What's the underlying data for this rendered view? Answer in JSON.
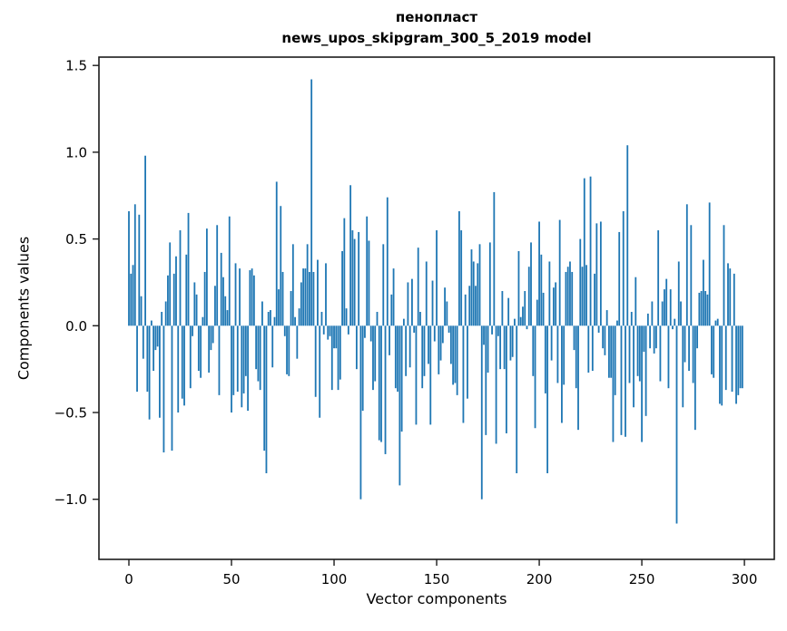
{
  "chart_data": {
    "type": "bar",
    "title": "пенопласт",
    "subtitle": "news_upos_skipgram_300_5_2019 model",
    "xlabel": "Vector components",
    "ylabel": "Components values",
    "x_ticks": [
      0,
      50,
      100,
      150,
      200,
      250,
      300
    ],
    "y_ticks": [
      1.5,
      1.0,
      0.5,
      0.0,
      -0.5,
      -1.0
    ],
    "xlim": [
      -14.6,
      314.6
    ],
    "ylim": [
      -1.35,
      1.55
    ],
    "grid": "off",
    "legend": "none",
    "bar_color": "#1f77b4",
    "axis_color": "#1c1c1c",
    "n_components": 300,
    "values": [
      0.66,
      0.3,
      0.35,
      0.7,
      -0.38,
      0.64,
      0.17,
      -0.19,
      0.98,
      -0.38,
      -0.54,
      0.03,
      -0.26,
      -0.14,
      -0.12,
      -0.53,
      0.08,
      -0.73,
      0.14,
      0.29,
      0.48,
      -0.72,
      0.3,
      0.4,
      -0.5,
      0.55,
      -0.42,
      -0.46,
      0.41,
      0.65,
      -0.36,
      -0.06,
      0.25,
      0.18,
      -0.26,
      -0.3,
      0.05,
      0.31,
      0.56,
      -0.27,
      -0.14,
      -0.1,
      0.23,
      0.58,
      -0.4,
      0.42,
      0.28,
      0.17,
      0.09,
      0.63,
      -0.5,
      -0.4,
      0.36,
      -0.38,
      0.33,
      -0.47,
      -0.39,
      -0.29,
      -0.49,
      0.32,
      0.33,
      0.29,
      -0.25,
      -0.32,
      -0.37,
      0.14,
      -0.72,
      -0.85,
      0.08,
      0.09,
      -0.24,
      0.05,
      0.83,
      0.21,
      0.69,
      0.31,
      -0.06,
      -0.28,
      -0.29,
      0.2,
      0.47,
      0.05,
      -0.19,
      0.1,
      0.25,
      0.33,
      0.33,
      0.47,
      0.31,
      1.42,
      0.31,
      -0.41,
      0.38,
      -0.53,
      0.08,
      -0.05,
      0.36,
      -0.08,
      -0.06,
      -0.37,
      -0.13,
      -0.13,
      -0.37,
      -0.31,
      0.43,
      0.62,
      0.1,
      -0.05,
      0.81,
      0.55,
      0.5,
      -0.25,
      0.54,
      -1.0,
      -0.49,
      -0.07,
      0.63,
      0.49,
      -0.09,
      -0.37,
      -0.32,
      0.08,
      -0.66,
      -0.67,
      0.47,
      -0.74,
      0.74,
      -0.17,
      0.18,
      0.33,
      -0.36,
      -0.38,
      -0.92,
      -0.61,
      0.04,
      -0.29,
      0.25,
      -0.24,
      0.27,
      -0.04,
      -0.57,
      0.45,
      0.08,
      -0.36,
      -0.29,
      0.37,
      -0.22,
      -0.57,
      0.26,
      -0.09,
      0.55,
      -0.28,
      -0.2,
      -0.1,
      0.22,
      0.14,
      -0.04,
      -0.22,
      -0.34,
      -0.33,
      -0.4,
      0.66,
      0.55,
      -0.56,
      0.18,
      -0.42,
      0.23,
      0.44,
      0.37,
      0.23,
      0.36,
      0.47,
      -1.0,
      -0.11,
      -0.63,
      -0.27,
      0.48,
      -0.05,
      0.77,
      -0.68,
      -0.06,
      -0.25,
      0.2,
      -0.25,
      -0.62,
      0.16,
      -0.2,
      -0.18,
      0.04,
      -0.85,
      0.43,
      0.05,
      0.11,
      0.2,
      -0.02,
      0.34,
      0.48,
      -0.29,
      -0.59,
      0.15,
      0.6,
      0.41,
      0.19,
      -0.39,
      -0.85,
      0.37,
      -0.2,
      0.22,
      0.25,
      -0.33,
      0.61,
      -0.56,
      -0.34,
      0.31,
      0.34,
      0.37,
      0.31,
      -0.14,
      -0.36,
      -0.6,
      0.5,
      0.34,
      0.85,
      0.35,
      -0.27,
      0.86,
      -0.26,
      0.3,
      0.59,
      -0.04,
      0.6,
      -0.13,
      -0.17,
      0.09,
      -0.3,
      -0.3,
      -0.67,
      -0.4,
      0.03,
      0.54,
      -0.63,
      0.66,
      -0.64,
      1.04,
      -0.33,
      0.08,
      -0.47,
      0.28,
      -0.29,
      -0.32,
      -0.67,
      -0.15,
      -0.52,
      0.07,
      -0.13,
      0.14,
      -0.16,
      -0.13,
      0.55,
      -0.32,
      0.14,
      0.21,
      0.27,
      -0.36,
      0.21,
      -0.02,
      0.04,
      -1.14,
      0.37,
      0.14,
      -0.47,
      -0.21,
      0.7,
      -0.26,
      0.58,
      -0.33,
      -0.6,
      -0.13,
      0.19,
      0.2,
      0.38,
      0.2,
      0.18,
      0.71,
      -0.28,
      -0.3,
      0.03,
      0.04,
      -0.45,
      -0.46,
      0.58,
      -0.37,
      0.36,
      0.33,
      -0.38,
      0.3,
      -0.45,
      -0.4,
      -0.36,
      -0.36
    ]
  }
}
